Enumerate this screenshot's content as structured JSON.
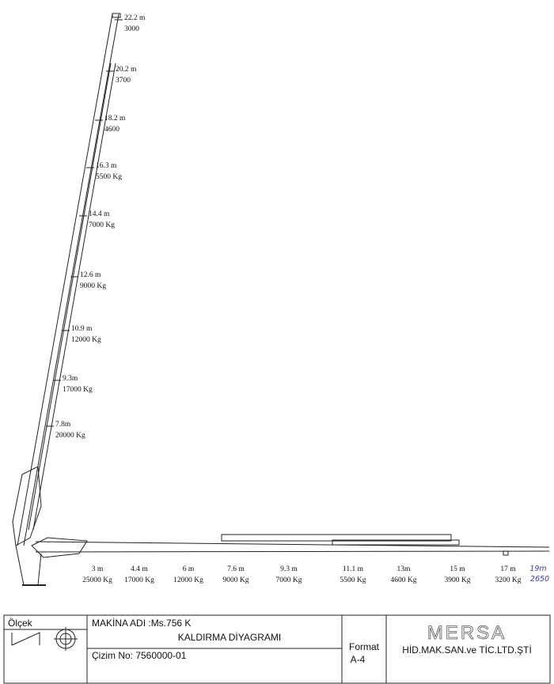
{
  "vertical_positions": [
    {
      "length": "22.2 m",
      "load": "3000"
    },
    {
      "length": "20.2 m",
      "load": "3700"
    },
    {
      "length": "18.2 m",
      "load": "4600"
    },
    {
      "length": "16.3 m",
      "load": "5500 Kg"
    },
    {
      "length": "14.4 m",
      "load": "7000 Kg"
    },
    {
      "length": "12.6 m",
      "load": "9000 Kg"
    },
    {
      "length": "10.9 m",
      "load": "12000 Kg"
    },
    {
      "length": "9.3m",
      "load": "17000 Kg"
    },
    {
      "length": "7.8m",
      "load": "20000 Kg"
    }
  ],
  "horizontal_positions": [
    {
      "length": "3 m",
      "load": "25000 Kg"
    },
    {
      "length": "4.4 m",
      "load": "17000 Kg"
    },
    {
      "length": "6 m",
      "load": "12000 Kg"
    },
    {
      "length": "7.6 m",
      "load": "9000 Kg"
    },
    {
      "length": "9.3 m",
      "load": "7000 Kg"
    },
    {
      "length": "11.1 m",
      "load": "5500 Kg"
    },
    {
      "length": "13m",
      "load": "4600 Kg"
    },
    {
      "length": "15 m",
      "load": "3900 Kg"
    },
    {
      "length": "17 m",
      "load": "3200 Kg"
    }
  ],
  "handwritten": {
    "length": "19m",
    "load": "2650"
  },
  "title_block": {
    "scale_label": "Ölçek",
    "machine_name": "MAKİNA ADI :Ms.756 K",
    "drawing_title": "KALDIRMA DİYAGRAMI",
    "format_label": "Format",
    "format_value": "A-4",
    "company": "MERSA",
    "company_full": "HİD.MAK.SAN.ve TİC.LTD.ŞTİ",
    "drawing_number": "Çizim No: 7560000-01"
  }
}
